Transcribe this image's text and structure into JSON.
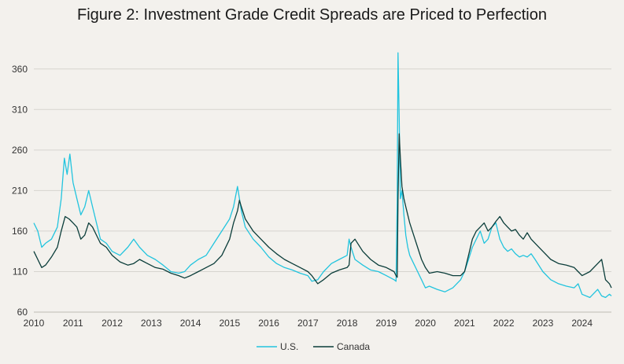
{
  "chart_data": {
    "type": "line",
    "title": "Figure 2: Investment Grade Credit Spreads are Priced to Perfection",
    "xlabel": "",
    "ylabel": "",
    "x_ticks": [
      "2010",
      "2011",
      "2012",
      "2013",
      "2014",
      "2015",
      "2016",
      "2017",
      "2018",
      "2019",
      "2020",
      "2021",
      "2022",
      "2023",
      "2024"
    ],
    "y_ticks": [
      60,
      110,
      160,
      210,
      260,
      310,
      360
    ],
    "xlim": [
      2010,
      2024.75
    ],
    "ylim": [
      60,
      385
    ],
    "grid": "horizontal",
    "legend_position": "bottom-center",
    "series": [
      {
        "name": "U.S.",
        "color": "#22c4de",
        "x": [
          2010.0,
          2010.1,
          2010.2,
          2010.3,
          2010.45,
          2010.6,
          2010.7,
          2010.78,
          2010.85,
          2010.92,
          2011.0,
          2011.1,
          2011.2,
          2011.3,
          2011.4,
          2011.5,
          2011.6,
          2011.7,
          2011.85,
          2012.0,
          2012.2,
          2012.4,
          2012.55,
          2012.7,
          2012.9,
          2013.1,
          2013.3,
          2013.5,
          2013.7,
          2013.85,
          2014.0,
          2014.2,
          2014.4,
          2014.6,
          2014.8,
          2015.0,
          2015.1,
          2015.2,
          2015.25,
          2015.3,
          2015.4,
          2015.6,
          2015.8,
          2016.0,
          2016.2,
          2016.4,
          2016.6,
          2016.8,
          2017.0,
          2017.1,
          2017.25,
          2017.4,
          2017.6,
          2017.8,
          2018.0,
          2018.05,
          2018.1,
          2018.2,
          2018.4,
          2018.6,
          2018.8,
          2019.0,
          2019.2,
          2019.25,
          2019.28,
          2019.3,
          2019.33,
          2019.36,
          2019.4,
          2019.45,
          2019.5,
          2019.55,
          2019.6,
          2019.7,
          2019.8,
          2019.9,
          2020.0,
          2020.1,
          2020.3,
          2020.5,
          2020.7,
          2020.9,
          2021.0,
          2021.1,
          2021.2,
          2021.3,
          2021.4,
          2021.5,
          2021.6,
          2021.7,
          2021.8,
          2021.9,
          2022.0,
          2022.1,
          2022.2,
          2022.3,
          2022.4,
          2022.5,
          2022.6,
          2022.7,
          2022.8,
          2023.0,
          2023.2,
          2023.4,
          2023.6,
          2023.8,
          2023.9,
          2024.0,
          2024.2,
          2024.4,
          2024.5,
          2024.6,
          2024.7,
          2024.75
        ],
        "y": [
          170,
          160,
          140,
          145,
          150,
          165,
          200,
          250,
          230,
          255,
          220,
          200,
          180,
          190,
          210,
          190,
          170,
          150,
          145,
          135,
          130,
          140,
          150,
          140,
          130,
          125,
          118,
          110,
          108,
          110,
          118,
          125,
          130,
          145,
          160,
          175,
          190,
          215,
          200,
          185,
          165,
          150,
          140,
          128,
          120,
          115,
          112,
          108,
          105,
          98,
          100,
          110,
          120,
          125,
          130,
          150,
          140,
          125,
          118,
          112,
          110,
          105,
          100,
          98,
          200,
          380,
          300,
          200,
          210,
          180,
          155,
          140,
          130,
          120,
          110,
          100,
          90,
          92,
          88,
          85,
          90,
          100,
          110,
          125,
          140,
          150,
          160,
          145,
          150,
          165,
          170,
          150,
          140,
          135,
          138,
          132,
          128,
          130,
          128,
          132,
          125,
          110,
          100,
          95,
          92,
          90,
          95,
          82,
          78,
          88,
          80,
          78,
          82,
          80
        ]
      },
      {
        "name": "Canada",
        "color": "#0b3d3a",
        "x": [
          2010.0,
          2010.1,
          2010.2,
          2010.3,
          2010.45,
          2010.6,
          2010.7,
          2010.8,
          2010.9,
          2011.0,
          2011.1,
          2011.2,
          2011.3,
          2011.4,
          2011.5,
          2011.6,
          2011.7,
          2011.85,
          2012.0,
          2012.2,
          2012.4,
          2012.55,
          2012.7,
          2012.9,
          2013.1,
          2013.3,
          2013.5,
          2013.7,
          2013.85,
          2014.0,
          2014.2,
          2014.4,
          2014.6,
          2014.8,
          2015.0,
          2015.1,
          2015.2,
          2015.25,
          2015.3,
          2015.4,
          2015.6,
          2015.8,
          2016.0,
          2016.2,
          2016.4,
          2016.6,
          2016.8,
          2017.0,
          2017.1,
          2017.25,
          2017.4,
          2017.6,
          2017.8,
          2018.0,
          2018.05,
          2018.1,
          2018.2,
          2018.4,
          2018.6,
          2018.8,
          2019.0,
          2019.2,
          2019.25,
          2019.28,
          2019.3,
          2019.33,
          2019.36,
          2019.4,
          2019.45,
          2019.5,
          2019.55,
          2019.6,
          2019.7,
          2019.8,
          2019.9,
          2020.0,
          2020.1,
          2020.3,
          2020.5,
          2020.7,
          2020.9,
          2021.0,
          2021.1,
          2021.2,
          2021.3,
          2021.4,
          2021.5,
          2021.6,
          2021.7,
          2021.8,
          2021.9,
          2022.0,
          2022.1,
          2022.2,
          2022.3,
          2022.4,
          2022.5,
          2022.6,
          2022.7,
          2022.8,
          2023.0,
          2023.2,
          2023.4,
          2023.6,
          2023.8,
          2023.9,
          2024.0,
          2024.2,
          2024.4,
          2024.5,
          2024.6,
          2024.7,
          2024.75
        ],
        "y": [
          135,
          125,
          115,
          118,
          128,
          140,
          160,
          178,
          175,
          170,
          165,
          150,
          155,
          170,
          165,
          155,
          145,
          140,
          130,
          122,
          118,
          120,
          125,
          120,
          115,
          113,
          108,
          105,
          102,
          105,
          110,
          115,
          120,
          130,
          150,
          170,
          185,
          198,
          190,
          175,
          160,
          150,
          140,
          132,
          125,
          120,
          115,
          110,
          105,
          95,
          100,
          108,
          112,
          115,
          118,
          145,
          150,
          135,
          125,
          118,
          115,
          110,
          105,
          103,
          200,
          280,
          250,
          215,
          200,
          190,
          180,
          170,
          155,
          140,
          125,
          115,
          108,
          110,
          108,
          105,
          105,
          110,
          130,
          150,
          160,
          165,
          170,
          160,
          165,
          172,
          178,
          170,
          165,
          160,
          162,
          155,
          150,
          158,
          150,
          145,
          135,
          125,
          120,
          118,
          115,
          110,
          105,
          110,
          120,
          125,
          100,
          95,
          90
        ]
      }
    ]
  }
}
